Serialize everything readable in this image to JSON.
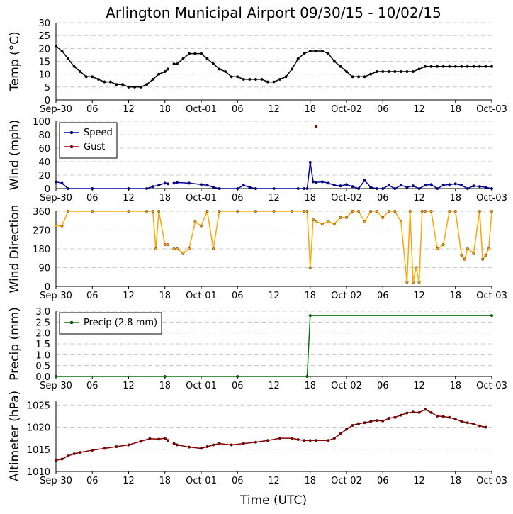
{
  "title": "Arlington Municipal Airport 09/30/15 - 10/02/15",
  "xlabel": "Time (UTC)",
  "x_ticks": [
    "Sep-30",
    "06",
    "12",
    "18",
    "Oct-01",
    "06",
    "12",
    "18",
    "Oct-02",
    "06",
    "12",
    "18",
    "Oct-03"
  ],
  "colors": {
    "temp": "#000000",
    "speed": "#0000a0",
    "gust": "#aa0000",
    "direction": "#ffa500",
    "precip": "#007700",
    "altimeter": "#8b0000"
  },
  "chart_data": [
    {
      "type": "line",
      "title": "",
      "ylabel": "Temp (°C)",
      "ylim": [
        0,
        30
      ],
      "yticks": [
        0,
        5,
        10,
        15,
        20,
        25,
        30
      ],
      "x_unit": "hours since Sep-30 00:00 UTC",
      "xlim": [
        0,
        72
      ],
      "grid": true,
      "series": [
        {
          "values_key": "temp",
          "points": [
            [
              0,
              21
            ],
            [
              1,
              19
            ],
            [
              2,
              16
            ],
            [
              3,
              13
            ],
            [
              4,
              11
            ],
            [
              5,
              9
            ],
            [
              6,
              9
            ],
            [
              7,
              8
            ],
            [
              8,
              7
            ],
            [
              9,
              7
            ],
            [
              10,
              6
            ],
            [
              11,
              6
            ],
            [
              12,
              5
            ],
            [
              13,
              5
            ],
            [
              14,
              5
            ],
            [
              15,
              6
            ],
            [
              16,
              8
            ],
            [
              17,
              10
            ],
            [
              18,
              11
            ],
            [
              18.5,
              12
            ]
          ],
          "points2": [
            [
              19.5,
              14
            ],
            [
              20,
              14
            ],
            [
              21,
              16
            ],
            [
              22,
              18
            ],
            [
              23,
              18
            ],
            [
              24,
              18
            ],
            [
              25,
              16
            ],
            [
              26,
              14
            ],
            [
              27,
              12
            ],
            [
              28,
              11
            ],
            [
              29,
              9
            ],
            [
              30,
              9
            ],
            [
              31,
              8
            ],
            [
              32,
              8
            ],
            [
              33,
              8
            ],
            [
              34,
              8
            ],
            [
              35,
              7
            ],
            [
              36,
              7
            ],
            [
              37,
              8
            ],
            [
              38,
              9
            ],
            [
              39,
              12
            ],
            [
              40,
              16
            ],
            [
              41,
              18
            ],
            [
              42,
              19
            ],
            [
              43,
              19
            ],
            [
              44,
              19
            ],
            [
              45,
              18
            ],
            [
              46,
              15
            ],
            [
              47,
              13
            ],
            [
              48,
              11
            ],
            [
              49,
              9
            ],
            [
              50,
              9
            ],
            [
              51,
              9
            ],
            [
              52,
              10
            ],
            [
              53,
              11
            ],
            [
              54,
              11
            ],
            [
              55,
              11
            ],
            [
              56,
              11
            ],
            [
              57,
              11
            ],
            [
              58,
              11
            ],
            [
              59,
              11
            ],
            [
              60,
              12
            ],
            [
              61,
              13
            ],
            [
              62,
              13
            ],
            [
              63,
              13
            ],
            [
              64,
              13
            ],
            [
              65,
              13
            ],
            [
              66,
              13
            ],
            [
              67,
              13
            ],
            [
              68,
              13
            ],
            [
              69,
              13
            ],
            [
              70,
              13
            ],
            [
              71,
              13
            ],
            [
              72,
              13
            ]
          ]
        }
      ]
    },
    {
      "type": "line",
      "title": "",
      "ylabel": "Wind (mph)",
      "ylim": [
        0,
        100
      ],
      "yticks": [
        0,
        20,
        40,
        60,
        80,
        100
      ],
      "xlim": [
        0,
        72
      ],
      "grid": true,
      "legend": {
        "placement": "top-left"
      },
      "series": [
        {
          "name": "Speed",
          "points": [
            [
              0,
              10
            ],
            [
              1,
              8
            ],
            [
              2,
              0
            ],
            [
              6,
              0
            ],
            [
              12,
              0
            ],
            [
              15,
              0
            ],
            [
              16,
              3
            ],
            [
              17,
              5
            ],
            [
              18,
              8
            ],
            [
              18.5,
              7
            ]
          ],
          "points2": [
            [
              19.5,
              8
            ],
            [
              20,
              9
            ],
            [
              22,
              8
            ],
            [
              24,
              6
            ],
            [
              25,
              5
            ],
            [
              26,
              2
            ],
            [
              27,
              0
            ],
            [
              30,
              0
            ],
            [
              31,
              5
            ],
            [
              32,
              2
            ],
            [
              33,
              0
            ],
            [
              36,
              0
            ],
            [
              40,
              0
            ],
            [
              41,
              0
            ],
            [
              41.5,
              0
            ],
            [
              42,
              39
            ],
            [
              42.5,
              10
            ],
            [
              43,
              9
            ],
            [
              44,
              10
            ],
            [
              45,
              8
            ],
            [
              46,
              5
            ],
            [
              47,
              4
            ],
            [
              48,
              6
            ],
            [
              49,
              3
            ],
            [
              50,
              0
            ],
            [
              51,
              12
            ],
            [
              52,
              2
            ],
            [
              53,
              0
            ],
            [
              54,
              0
            ],
            [
              55,
              5
            ],
            [
              56,
              0
            ],
            [
              57,
              5
            ],
            [
              58,
              2
            ],
            [
              59,
              4
            ],
            [
              60,
              0
            ],
            [
              61,
              5
            ],
            [
              62,
              6
            ],
            [
              63,
              0
            ],
            [
              64,
              5
            ],
            [
              65,
              6
            ],
            [
              66,
              7
            ],
            [
              67,
              5
            ],
            [
              68,
              0
            ],
            [
              69,
              4
            ],
            [
              70,
              3
            ],
            [
              71,
              2
            ],
            [
              72,
              0
            ]
          ]
        },
        {
          "name": "Gust",
          "points": [
            [
              43,
              92
            ]
          ]
        }
      ]
    },
    {
      "type": "scatter",
      "title": "",
      "ylabel": "Wind Direction",
      "ylim": [
        0,
        360
      ],
      "yticks": [
        0,
        90,
        180,
        270,
        360
      ],
      "xlim": [
        0,
        72
      ],
      "grid": true,
      "series": [
        {
          "points": [
            [
              0,
              290
            ],
            [
              1,
              290
            ],
            [
              2,
              360
            ],
            [
              6,
              360
            ],
            [
              12,
              360
            ],
            [
              15,
              360
            ],
            [
              16,
              360
            ],
            [
              16.5,
              180
            ],
            [
              17,
              360
            ],
            [
              18,
              200
            ],
            [
              18.5,
              200
            ]
          ],
          "points2": [
            [
              19.5,
              180
            ],
            [
              20,
              180
            ],
            [
              21,
              160
            ],
            [
              22,
              180
            ],
            [
              23,
              310
            ],
            [
              24,
              290
            ],
            [
              25,
              360
            ],
            [
              26,
              180
            ],
            [
              27,
              360
            ],
            [
              30,
              360
            ],
            [
              33,
              360
            ],
            [
              36,
              360
            ],
            [
              39,
              360
            ],
            [
              41,
              360
            ],
            [
              41.5,
              360
            ],
            [
              42,
              90
            ],
            [
              42.5,
              320
            ],
            [
              43,
              310
            ],
            [
              44,
              300
            ],
            [
              45,
              310
            ],
            [
              46,
              300
            ],
            [
              47,
              330
            ],
            [
              48,
              330
            ],
            [
              49,
              360
            ],
            [
              50,
              360
            ],
            [
              51,
              310
            ],
            [
              52,
              360
            ],
            [
              53,
              360
            ],
            [
              54,
              330
            ],
            [
              55,
              360
            ],
            [
              56,
              360
            ],
            [
              57,
              310
            ],
            [
              58,
              20
            ],
            [
              58.5,
              360
            ],
            [
              59,
              20
            ],
            [
              59.5,
              90
            ],
            [
              60,
              20
            ],
            [
              60.5,
              360
            ],
            [
              61,
              360
            ],
            [
              62,
              360
            ],
            [
              63,
              180
            ],
            [
              64,
              200
            ],
            [
              65,
              360
            ],
            [
              66,
              360
            ],
            [
              67,
              150
            ],
            [
              67.5,
              130
            ],
            [
              68,
              180
            ],
            [
              69,
              160
            ],
            [
              70,
              360
            ],
            [
              70.5,
              130
            ],
            [
              71,
              150
            ],
            [
              71.5,
              180
            ],
            [
              72,
              360
            ]
          ]
        }
      ]
    },
    {
      "type": "line",
      "title": "",
      "ylabel": "Precip (mm)",
      "ylim": [
        0,
        3
      ],
      "yticks": [
        0.0,
        0.5,
        1.0,
        1.5,
        2.0,
        2.5,
        3.0
      ],
      "xlim": [
        0,
        72
      ],
      "grid": true,
      "legend": {
        "placement": "top-left"
      },
      "series": [
        {
          "name": "Precip (2.8 mm)",
          "points": [
            [
              0,
              0
            ],
            [
              18,
              0
            ],
            [
              30,
              0
            ],
            [
              41.5,
              0
            ],
            [
              42,
              2.8
            ],
            [
              72,
              2.8
            ]
          ]
        }
      ]
    },
    {
      "type": "line",
      "title": "",
      "ylabel": "Altimeter (hPa)",
      "ylim": [
        1010,
        1026
      ],
      "yticks": [
        1010,
        1015,
        1020,
        1025
      ],
      "xlim": [
        0,
        72
      ],
      "grid": true,
      "series": [
        {
          "points": [
            [
              0,
              1012.5
            ],
            [
              1,
              1012.8
            ],
            [
              2,
              1013.5
            ],
            [
              3,
              1014
            ],
            [
              4,
              1014.3
            ],
            [
              6,
              1014.8
            ],
            [
              8,
              1015.2
            ],
            [
              10,
              1015.6
            ],
            [
              12,
              1016
            ],
            [
              14,
              1016.8
            ],
            [
              15.5,
              1017.4
            ],
            [
              17,
              1017.3
            ],
            [
              18,
              1017.5
            ],
            [
              18.5,
              1017
            ]
          ],
          "points2": [
            [
              19.5,
              1016.3
            ],
            [
              20,
              1016
            ],
            [
              22,
              1015.5
            ],
            [
              24,
              1015.2
            ],
            [
              25,
              1015.6
            ],
            [
              26,
              1016
            ],
            [
              27,
              1016.3
            ],
            [
              29,
              1016
            ],
            [
              31,
              1016.3
            ],
            [
              33,
              1016.6
            ],
            [
              35,
              1017
            ],
            [
              37,
              1017.5
            ],
            [
              39,
              1017.5
            ],
            [
              40,
              1017.2
            ],
            [
              41,
              1017
            ],
            [
              42,
              1017
            ],
            [
              43,
              1017
            ],
            [
              45,
              1017
            ],
            [
              46,
              1017.5
            ],
            [
              47,
              1018.5
            ],
            [
              48,
              1019.5
            ],
            [
              49,
              1020.4
            ],
            [
              50,
              1020.8
            ],
            [
              51,
              1021
            ],
            [
              52,
              1021.3
            ],
            [
              53,
              1021.5
            ],
            [
              54,
              1021.4
            ],
            [
              55,
              1022
            ],
            [
              56,
              1022.2
            ],
            [
              57,
              1022.7
            ],
            [
              58,
              1023.2
            ],
            [
              59,
              1023.4
            ],
            [
              60,
              1023.3
            ],
            [
              61,
              1024
            ],
            [
              62,
              1023.3
            ],
            [
              63,
              1022.5
            ],
            [
              64,
              1022.4
            ],
            [
              65,
              1022.2
            ],
            [
              66,
              1021.8
            ],
            [
              67,
              1021.3
            ],
            [
              68,
              1021
            ],
            [
              69,
              1020.7
            ],
            [
              70,
              1020.3
            ],
            [
              71,
              1020
            ]
          ]
        }
      ]
    }
  ]
}
